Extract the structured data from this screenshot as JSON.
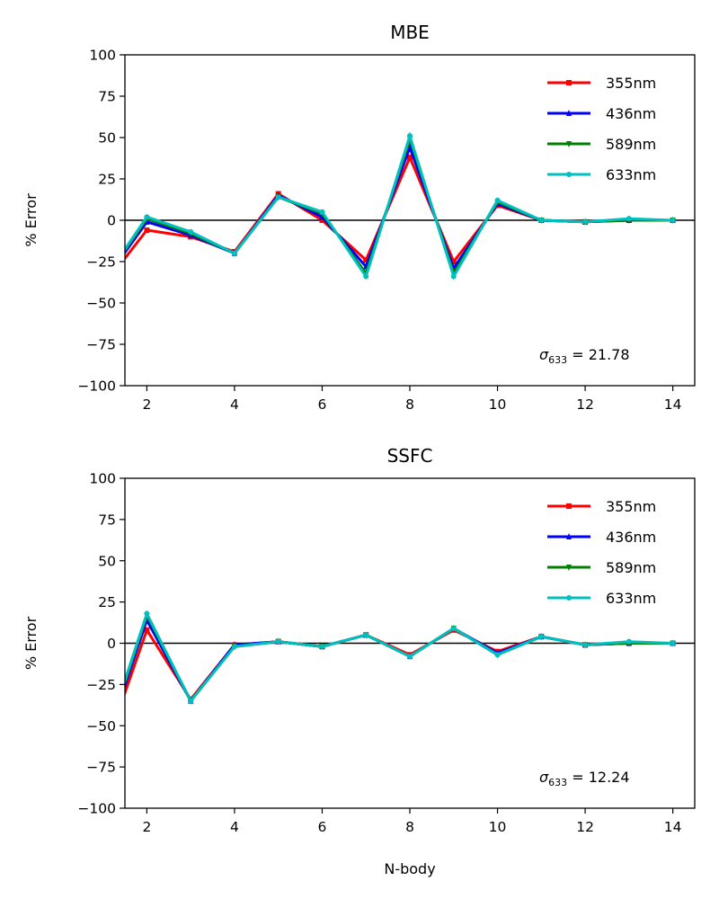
{
  "chart_data": [
    {
      "type": "line",
      "title": "MBE",
      "xlabel": "",
      "ylabel": "% Error",
      "xlim": [
        1.5,
        14.5
      ],
      "ylim": [
        -100,
        100
      ],
      "xticks": [
        2,
        4,
        6,
        8,
        10,
        12,
        14
      ],
      "yticks": [
        -100,
        -75,
        -50,
        -25,
        0,
        25,
        50,
        75,
        100
      ],
      "x": [
        1,
        2,
        3,
        4,
        5,
        6,
        7,
        8,
        9,
        10,
        11,
        12,
        13,
        14
      ],
      "legend_position": "top-right",
      "annotation": {
        "symbol": "σ",
        "subscript": "633",
        "text": " = 21.78"
      },
      "series": [
        {
          "name": "355nm",
          "color": "#ff0000",
          "marker": "square",
          "values": [
            -40,
            -6,
            -10,
            -19,
            16,
            0,
            -24,
            38,
            -25,
            9,
            0,
            -1,
            0,
            0
          ]
        },
        {
          "name": "436nm",
          "color": "#0000ff",
          "marker": "triangle-up",
          "values": [
            -38,
            -1,
            -9,
            -20,
            15,
            2,
            -28,
            44,
            -29,
            10,
            0,
            -1,
            0,
            0
          ]
        },
        {
          "name": "589nm",
          "color": "#008000",
          "marker": "triangle-down",
          "values": [
            -37,
            1,
            -8,
            -20,
            14,
            4,
            -32,
            49,
            -32,
            11,
            0,
            -1,
            0,
            0
          ]
        },
        {
          "name": "633nm",
          "color": "#00bfbf",
          "marker": "circle",
          "values": [
            -37,
            2,
            -7,
            -20,
            14,
            5,
            -34,
            51,
            -34,
            12,
            0,
            -1,
            1,
            0
          ]
        }
      ]
    },
    {
      "type": "line",
      "title": "SSFC",
      "xlabel": "N-body",
      "ylabel": "% Error",
      "xlim": [
        1.5,
        14.5
      ],
      "ylim": [
        -100,
        100
      ],
      "xticks": [
        2,
        4,
        6,
        8,
        10,
        12,
        14
      ],
      "yticks": [
        -100,
        -75,
        -50,
        -25,
        0,
        25,
        50,
        75,
        100
      ],
      "x": [
        1,
        2,
        3,
        4,
        5,
        6,
        7,
        8,
        9,
        10,
        11,
        12,
        13,
        14
      ],
      "legend_position": "top-right",
      "annotation": {
        "symbol": "σ",
        "subscript": "633",
        "text": " = 12.24"
      },
      "series": [
        {
          "name": "355nm",
          "color": "#ff0000",
          "marker": "square",
          "values": [
            -68,
            8,
            -34,
            -1,
            1,
            -2,
            5,
            -7,
            8,
            -5,
            4,
            -1,
            0,
            0
          ]
        },
        {
          "name": "436nm",
          "color": "#0000ff",
          "marker": "triangle-up",
          "values": [
            -65,
            14,
            -35,
            -1,
            1,
            -2,
            5,
            -8,
            9,
            -6,
            4,
            -1,
            0,
            0
          ]
        },
        {
          "name": "589nm",
          "color": "#008000",
          "marker": "triangle-down",
          "values": [
            -64,
            17,
            -35,
            -2,
            1,
            -2,
            5,
            -8,
            9,
            -7,
            4,
            -1,
            0,
            0
          ]
        },
        {
          "name": "633nm",
          "color": "#00bfbf",
          "marker": "circle",
          "values": [
            -63,
            18,
            -35,
            -2,
            1,
            -2,
            5,
            -8,
            9,
            -7,
            4,
            -1,
            1,
            0
          ]
        }
      ]
    }
  ]
}
